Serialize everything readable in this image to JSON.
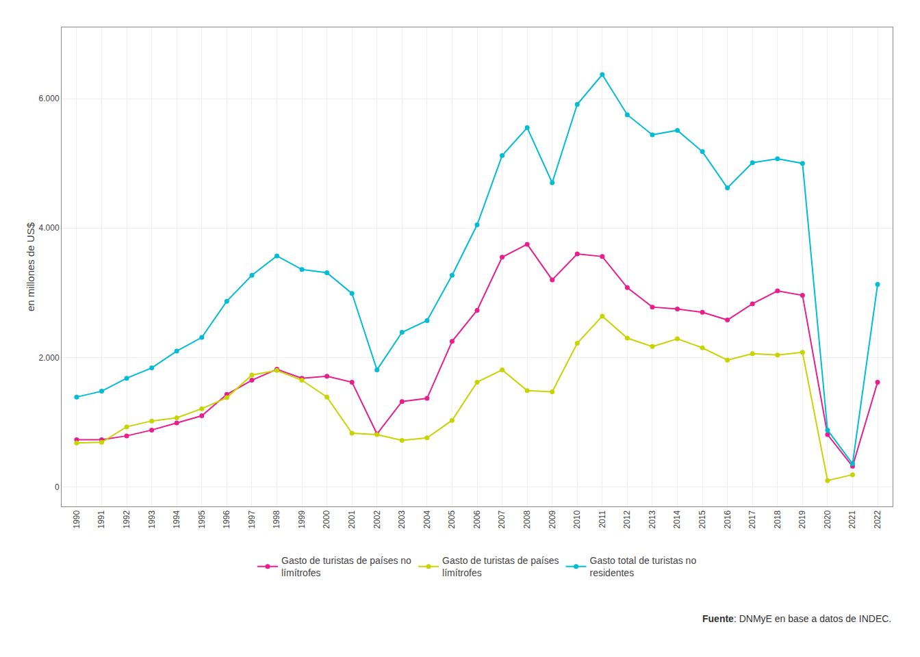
{
  "chart_data": {
    "type": "line",
    "x": [
      1990,
      1991,
      1992,
      1993,
      1994,
      1995,
      1996,
      1997,
      1998,
      1999,
      2000,
      2001,
      2002,
      2003,
      2004,
      2005,
      2006,
      2007,
      2008,
      2009,
      2010,
      2011,
      2012,
      2013,
      2014,
      2015,
      2016,
      2017,
      2018,
      2019,
      2020,
      2021,
      2022
    ],
    "series": [
      {
        "name": "Gasto de turistas de países no\nlímítrofes",
        "color": "#e91e8c",
        "values": [
          730,
          730,
          790,
          880,
          990,
          1100,
          1430,
          1650,
          1820,
          1680,
          1710,
          1620,
          820,
          1320,
          1370,
          2250,
          2730,
          3550,
          3750,
          3200,
          3600,
          3560,
          3080,
          2780,
          2750,
          2700,
          2580,
          2830,
          3030,
          2960,
          810,
          320,
          1620
        ]
      },
      {
        "name": "Gasto de turistas de países\nlímítrofes",
        "color": "#c8d400",
        "values": [
          680,
          690,
          930,
          1020,
          1070,
          1210,
          1380,
          1730,
          1800,
          1650,
          1390,
          830,
          810,
          720,
          760,
          1030,
          1620,
          1810,
          1490,
          1470,
          2220,
          2640,
          2300,
          2170,
          2290,
          2150,
          1960,
          2060,
          2040,
          2080,
          100,
          190,
          null
        ]
      },
      {
        "name": "Gasto total de turistas no\nresidentes",
        "color": "#00bcd4",
        "values": [
          1390,
          1480,
          1680,
          1840,
          2100,
          2310,
          2870,
          3270,
          3570,
          3360,
          3310,
          2990,
          1810,
          2390,
          2570,
          3270,
          4050,
          5120,
          5550,
          4700,
          5910,
          6370,
          5750,
          5440,
          5510,
          5180,
          4620,
          5010,
          5070,
          5000,
          880,
          360,
          3130
        ]
      }
    ],
    "ylabel": "en millones de US$",
    "xlim": [
      1989.4,
      2022.6
    ],
    "xticks": [
      1990,
      1991,
      1992,
      1993,
      1994,
      1995,
      1996,
      1997,
      1998,
      1999,
      2000,
      2001,
      2002,
      2003,
      2004,
      2005,
      2006,
      2007,
      2008,
      2009,
      2010,
      2011,
      2012,
      2013,
      2014,
      2015,
      2016,
      2017,
      2018,
      2019,
      2020,
      2021,
      2022
    ],
    "ylim": [
      -300,
      7100
    ],
    "yticks": [
      0,
      {
        "value": 2000,
        "label": "2.000"
      },
      {
        "value": 4000,
        "label": "4.000"
      },
      {
        "value": 6000,
        "label": "6.000"
      }
    ],
    "grid": true,
    "legend": "bottom",
    "marker": "circle",
    "source": {
      "bold": "Fuente",
      "text": ": DNMyE en base a datos de INDEC."
    }
  }
}
